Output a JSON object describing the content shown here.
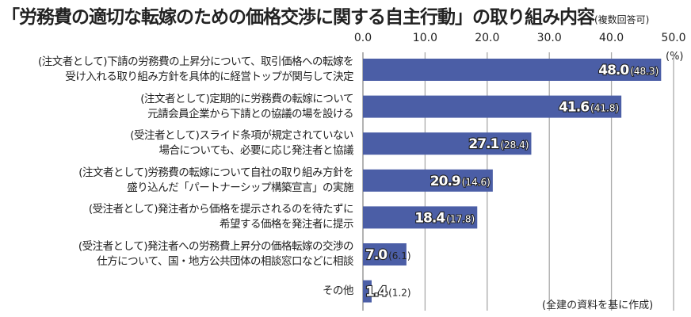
{
  "chart_data": {
    "type": "bar",
    "orientation": "horizontal",
    "title": "「労務費の適切な転嫁のための価格交渉に関する自主行動」の取り組み内容",
    "subtitle": "(複数回答可)",
    "unit": "(%)",
    "source": "(全建の資料を基に作成)",
    "xlim": [
      0,
      50
    ],
    "ticks": [
      "0.0",
      "10.0",
      "20.0",
      "30.0",
      "40.0",
      "50.0"
    ],
    "grid": true,
    "bar_color": "#4b5ea6",
    "categories": [
      [
        "(注文者として)下請の労務費の上昇分について、取引価格への転嫁を",
        "受け入れる取り組み方針を具体的に経営トップが関与して決定"
      ],
      [
        "(注文者として)定期的に労務費の転嫁について",
        "元請会員企業から下請との協議の場を設ける"
      ],
      [
        "(受注者として)スライド条項が規定されていない",
        "場合についても、必要に応じ発注者と協議"
      ],
      [
        "(注文者として)労務費の転嫁について自社の取り組み方針を",
        "盛り込んだ「パートナーシップ構築宣言」の実施"
      ],
      [
        "(受注者として)発注者から価格を提示されるのを待たずに",
        "希望する価格を発注者に提示"
      ],
      [
        "(受注者として)発注者への労務費上昇分の価格転嫁の交渉の",
        "仕方について、国・地方公共団体の相談窓口などに相談"
      ],
      [
        "その他"
      ]
    ],
    "values": [
      48.0,
      41.6,
      27.1,
      20.9,
      18.4,
      7.0,
      1.4
    ],
    "value_labels": [
      "48.0",
      "41.6",
      "27.1",
      "20.9",
      "18.4",
      "7.0",
      "1.4"
    ],
    "previous_labels": [
      "(48.3)",
      "(41.8)",
      "(28.4)",
      "(14.6)",
      "(17.8)",
      "(6.1)",
      "(1.2)"
    ],
    "previous_values": [
      48.3,
      41.8,
      28.4,
      14.6,
      17.8,
      6.1,
      1.2
    ]
  }
}
